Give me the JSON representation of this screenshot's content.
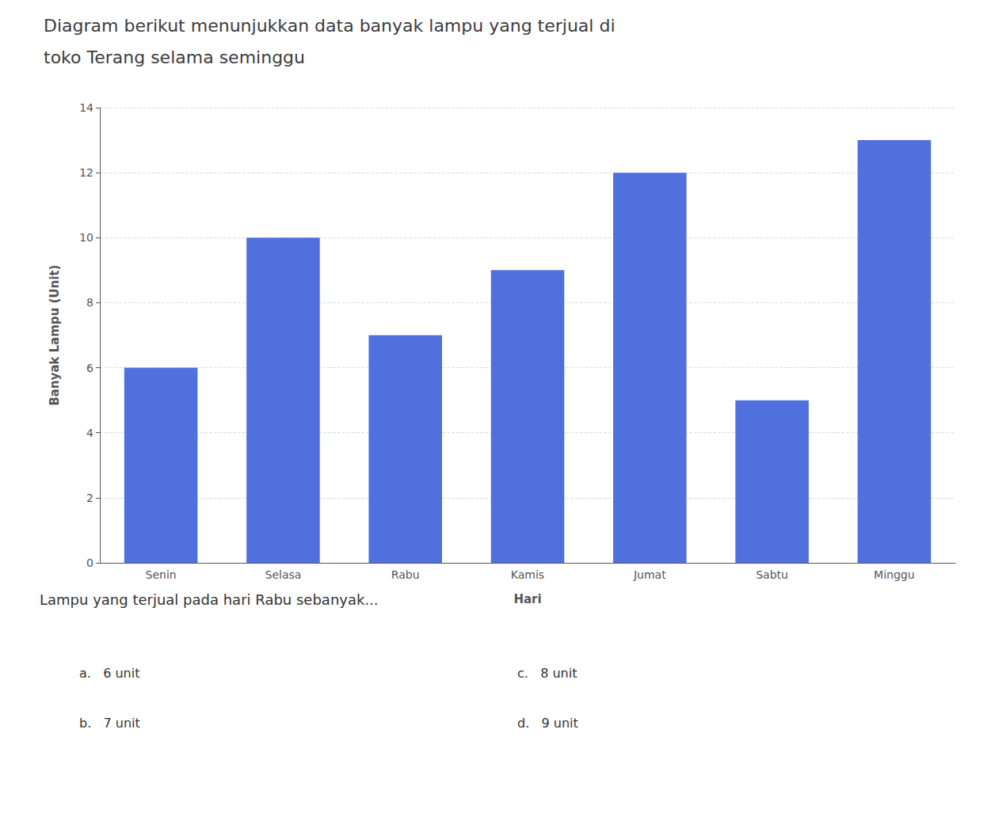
{
  "chart_data": {
    "type": "bar",
    "title": "Diagram berikut menunjukkan data banyak lampu yang terjual di",
    "subtitle": "toko Terang selama seminggu",
    "categories": [
      "Senin",
      "Selasa",
      "Rabu",
      "Kamis",
      "Jumat",
      "Sabtu",
      "Minggu"
    ],
    "values": [
      6,
      10,
      7,
      9,
      12,
      5,
      13
    ],
    "xlabel": "Hari",
    "ylabel": "Banyak Lampu (Unit)",
    "ylim": [
      0,
      14
    ],
    "yticks": [
      0,
      2,
      4,
      6,
      8,
      10,
      12,
      14
    ],
    "grid": true,
    "annotations": [
      "Lampu yang terjual pada hari Rabu sebanyak...",
      "a.   6 unit",
      "b.   7 unit",
      "c.   8 unit",
      "d.   9 unit"
    ]
  }
}
